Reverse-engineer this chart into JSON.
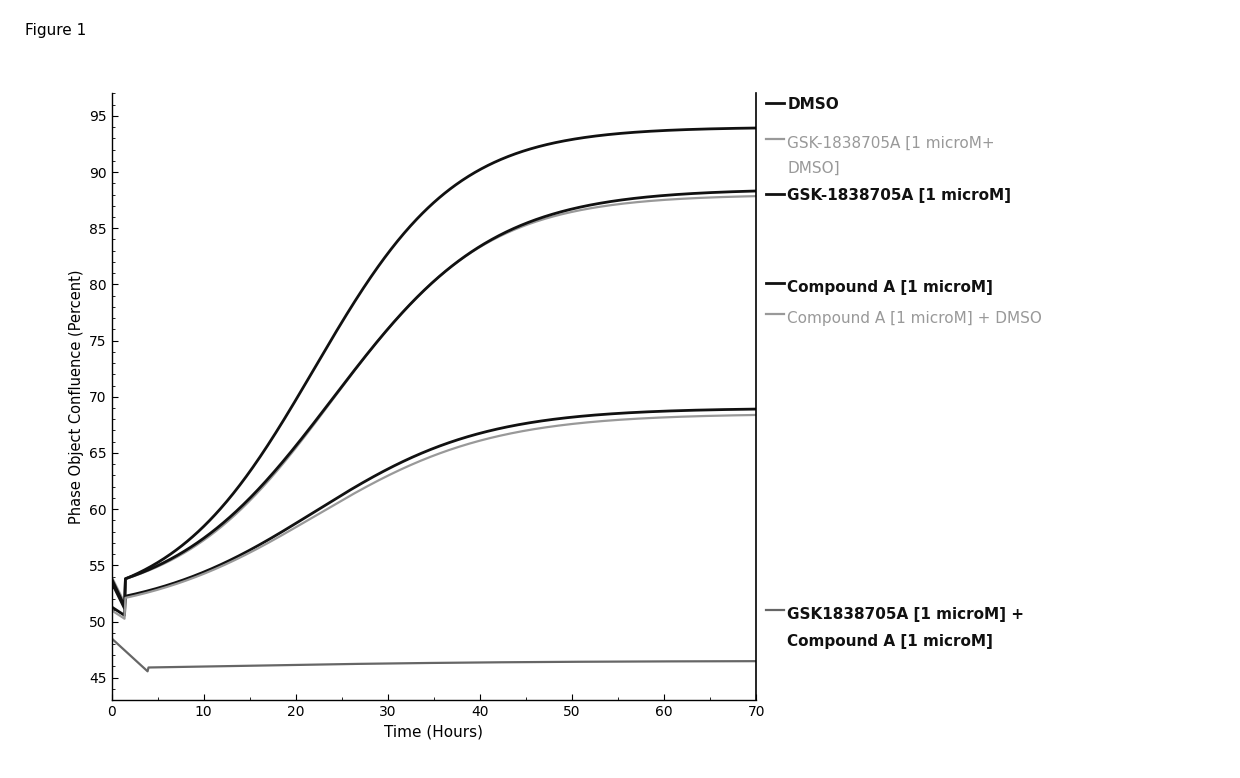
{
  "title": "Figure 1",
  "xlabel": "Time (Hours)",
  "ylabel": "Phase Object Confluence (Percent)",
  "xlim": [
    0,
    70
  ],
  "ylim": [
    43,
    97
  ],
  "yticks": [
    45,
    50,
    55,
    60,
    65,
    70,
    75,
    80,
    85,
    90,
    95
  ],
  "xticks": [
    0,
    10,
    20,
    30,
    40,
    50,
    60,
    70
  ],
  "background_color": "#ffffff",
  "series": [
    {
      "label": "DMSO",
      "color": "#111111",
      "linewidth": 2.0,
      "type": "growth",
      "y0": 53.5,
      "dip": 51.0,
      "dip_t": 1.5,
      "ymax": 94.0,
      "k": 0.13,
      "t_mid": 22
    },
    {
      "label": "GSK-1838705A [1 microM+DMSO]",
      "color": "#999999",
      "linewidth": 1.6,
      "type": "growth",
      "y0": 54.0,
      "dip": 51.5,
      "dip_t": 1.5,
      "ymax": 88.0,
      "k": 0.12,
      "t_mid": 24
    },
    {
      "label": "GSK-1838705A [1 microM]",
      "color": "#111111",
      "linewidth": 2.0,
      "type": "growth",
      "y0": 53.8,
      "dip": 51.2,
      "dip_t": 1.5,
      "ymax": 88.5,
      "k": 0.115,
      "t_mid": 24
    },
    {
      "label": "Compound A [1 microM]",
      "color": "#111111",
      "linewidth": 2.0,
      "type": "growth",
      "y0": 51.3,
      "dip": 50.5,
      "dip_t": 1.5,
      "ymax": 69.0,
      "k": 0.11,
      "t_mid": 22
    },
    {
      "label": "Compound A [1 microM] + DMSO",
      "color": "#999999",
      "linewidth": 1.6,
      "type": "growth",
      "y0": 51.0,
      "dip": 50.2,
      "dip_t": 1.5,
      "ymax": 68.5,
      "k": 0.105,
      "t_mid": 22
    },
    {
      "label": "GSK1838705A [1 microM] + Compound A [1 microM]",
      "color": "#666666",
      "linewidth": 1.6,
      "type": "flat_dip",
      "y0": 48.5,
      "dip": 45.5,
      "dip_t": 4,
      "ymax": 46.5,
      "k": 0.06,
      "t_mid": 10
    }
  ],
  "legend_entries": [
    {
      "text": "DMSO",
      "color": "#111111",
      "bold": true,
      "lw": 2.0
    },
    {
      "text": "GSK-1838705A [1 microM+",
      "color": "#999999",
      "bold": false,
      "lw": 1.6
    },
    {
      "text": "DMSO]",
      "color": "#999999",
      "bold": false,
      "lw": 0,
      "indent": true
    },
    {
      "text": "GSK-1838705A [1 microM]",
      "color": "#111111",
      "bold": true,
      "lw": 2.0
    },
    {
      "text": "",
      "color": "#ffffff",
      "bold": false,
      "lw": 0
    },
    {
      "text": "Compound A [1 microM]",
      "color": "#111111",
      "bold": true,
      "lw": 2.0
    },
    {
      "text": "Compound A [1 microM] + DMSO",
      "color": "#999999",
      "bold": false,
      "lw": 1.6
    },
    {
      "text": "",
      "color": "#ffffff",
      "bold": false,
      "lw": 0
    },
    {
      "text": "",
      "color": "#ffffff",
      "bold": false,
      "lw": 0
    },
    {
      "text": "GSK1838705A [1 microM] +",
      "color": "#111111",
      "bold": true,
      "lw": 2.0
    },
    {
      "text": "Compound A [1 microM]",
      "color": "#111111",
      "bold": true,
      "lw": 0,
      "indent": true
    }
  ]
}
